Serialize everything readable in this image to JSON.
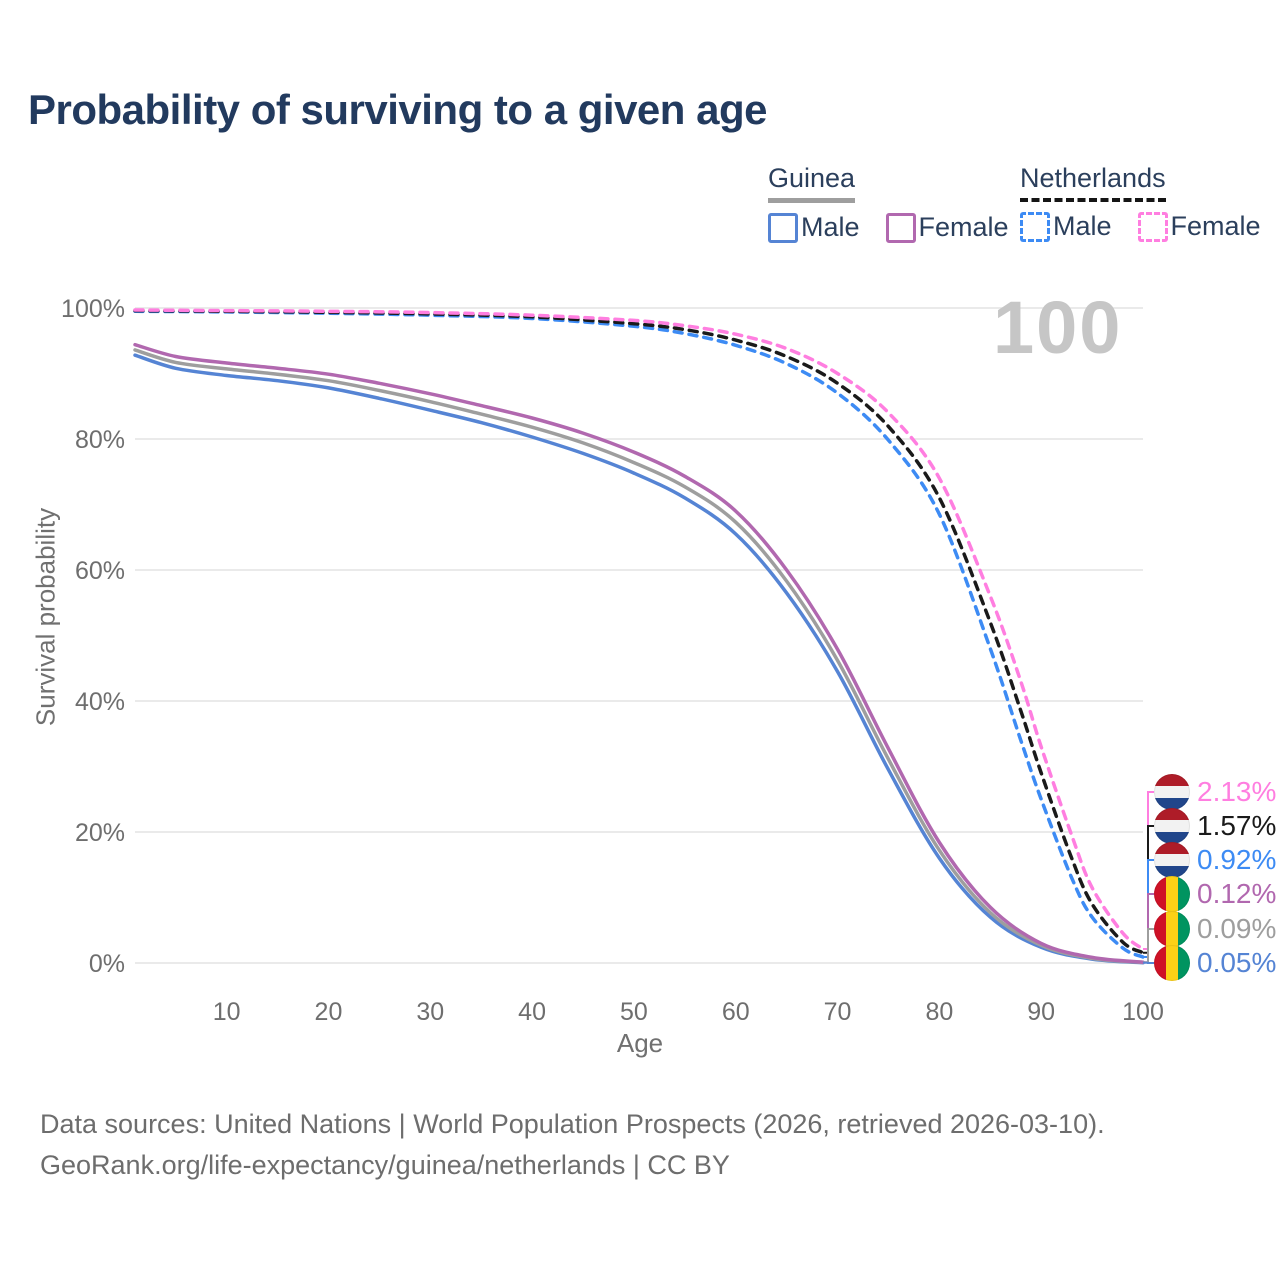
{
  "page": {
    "title": "Probability of surviving to a given age"
  },
  "legend": {
    "groups": [
      {
        "label": "Guinea",
        "line_style": "solid",
        "items": [
          {
            "label": "Male",
            "series": "gn_male"
          },
          {
            "label": "Female",
            "series": "gn_female"
          }
        ]
      },
      {
        "label": "Netherlands",
        "line_style": "dashed",
        "items": [
          {
            "label": "Male",
            "series": "nl_male"
          },
          {
            "label": "Female",
            "series": "nl_female"
          }
        ]
      }
    ]
  },
  "colors": {
    "gn_male": "#5584d4",
    "gn_both": "#9e9e9e",
    "gn_female": "#b168af",
    "nl_male": "#3d8bf4",
    "nl_both": "#1a1a1a",
    "nl_female": "#ff7ee0",
    "title_navy": "#223a5e",
    "tick_gray": "#6e6e6e",
    "grid_gray": "#e4e4e4",
    "annotation_gray": "#c6c6c6",
    "nl_flag_red": "#AE1C28",
    "nl_flag_white": "#f2f2f2",
    "nl_flag_blue": "#21468B",
    "gn_flag_red": "#CE1126",
    "gn_flag_yellow": "#FCD116",
    "gn_flag_green": "#009460"
  },
  "chart_data": {
    "type": "line",
    "title": "Probability of surviving to a given age",
    "xlabel": "Age",
    "ylabel": "Survival probability",
    "xlim": [
      1,
      100
    ],
    "ylim": [
      0,
      100
    ],
    "grid": true,
    "legend_position": "top-right",
    "corner_annotation": "100",
    "x_ticks": [
      10,
      20,
      30,
      40,
      50,
      60,
      70,
      80,
      90,
      100
    ],
    "y_ticks": [
      {
        "value": 0,
        "label": "0%"
      },
      {
        "value": 20,
        "label": "20%"
      },
      {
        "value": 40,
        "label": "40%"
      },
      {
        "value": 60,
        "label": "60%"
      },
      {
        "value": 80,
        "label": "80%"
      },
      {
        "value": 100,
        "label": "100%"
      }
    ],
    "series": [
      {
        "id": "gn_male",
        "name": "Guinea Male",
        "dash": false,
        "end_label": "0.05%",
        "points": [
          [
            1,
            92.8
          ],
          [
            5,
            90.8
          ],
          [
            10,
            89.7
          ],
          [
            15,
            88.9
          ],
          [
            20,
            87.8
          ],
          [
            25,
            86.2
          ],
          [
            30,
            84.4
          ],
          [
            35,
            82.5
          ],
          [
            40,
            80.3
          ],
          [
            45,
            77.8
          ],
          [
            50,
            74.8
          ],
          [
            55,
            71
          ],
          [
            60,
            65.5
          ],
          [
            65,
            56.5
          ],
          [
            70,
            44.5
          ],
          [
            75,
            29.5
          ],
          [
            80,
            16
          ],
          [
            85,
            7
          ],
          [
            90,
            2.4
          ],
          [
            95,
            0.6
          ],
          [
            100,
            0.05
          ]
        ]
      },
      {
        "id": "gn_both",
        "name": "Guinea (both sexes)",
        "dash": false,
        "end_label": "0.09%",
        "points": [
          [
            1,
            93.6
          ],
          [
            5,
            91.7
          ],
          [
            10,
            90.7
          ],
          [
            15,
            89.9
          ],
          [
            20,
            88.9
          ],
          [
            25,
            87.4
          ],
          [
            30,
            85.7
          ],
          [
            35,
            83.8
          ],
          [
            40,
            81.8
          ],
          [
            45,
            79.4
          ],
          [
            50,
            76.4
          ],
          [
            55,
            72.7
          ],
          [
            60,
            67.3
          ],
          [
            65,
            58.3
          ],
          [
            70,
            46.2
          ],
          [
            75,
            31.1
          ],
          [
            80,
            17.2
          ],
          [
            85,
            7.7
          ],
          [
            90,
            2.7
          ],
          [
            95,
            0.7
          ],
          [
            100,
            0.09
          ]
        ]
      },
      {
        "id": "gn_female",
        "name": "Guinea Female",
        "dash": false,
        "end_label": "0.12%",
        "points": [
          [
            1,
            94.4
          ],
          [
            5,
            92.6
          ],
          [
            10,
            91.6
          ],
          [
            15,
            90.8
          ],
          [
            20,
            89.9
          ],
          [
            25,
            88.5
          ],
          [
            30,
            86.9
          ],
          [
            35,
            85.1
          ],
          [
            40,
            83.2
          ],
          [
            45,
            80.9
          ],
          [
            50,
            78
          ],
          [
            55,
            74.3
          ],
          [
            60,
            69
          ],
          [
            65,
            60
          ],
          [
            70,
            47.9
          ],
          [
            75,
            32.7
          ],
          [
            80,
            18.4
          ],
          [
            85,
            8.5
          ],
          [
            90,
            3
          ],
          [
            95,
            0.85
          ],
          [
            100,
            0.12
          ]
        ]
      },
      {
        "id": "nl_male",
        "name": "Netherlands Male",
        "dash": true,
        "end_label": "0.92%",
        "points": [
          [
            1,
            99.5
          ],
          [
            10,
            99.4
          ],
          [
            20,
            99.2
          ],
          [
            30,
            98.9
          ],
          [
            40,
            98.4
          ],
          [
            50,
            97.2
          ],
          [
            55,
            96.1
          ],
          [
            60,
            94.3
          ],
          [
            65,
            91.5
          ],
          [
            70,
            87
          ],
          [
            75,
            79.8
          ],
          [
            80,
            68.5
          ],
          [
            85,
            48
          ],
          [
            88,
            34
          ],
          [
            90,
            25
          ],
          [
            93,
            13
          ],
          [
            95,
            7
          ],
          [
            98,
            2.3
          ],
          [
            100,
            0.92
          ]
        ]
      },
      {
        "id": "nl_both",
        "name": "Netherlands (both sexes)",
        "dash": true,
        "end_label": "1.57%",
        "points": [
          [
            1,
            99.6
          ],
          [
            10,
            99.5
          ],
          [
            20,
            99.35
          ],
          [
            30,
            99.1
          ],
          [
            40,
            98.65
          ],
          [
            50,
            97.6
          ],
          [
            55,
            96.7
          ],
          [
            60,
            95.1
          ],
          [
            65,
            92.6
          ],
          [
            70,
            88.5
          ],
          [
            75,
            81.9
          ],
          [
            80,
            71
          ],
          [
            85,
            52
          ],
          [
            88,
            38.5
          ],
          [
            90,
            29
          ],
          [
            93,
            16
          ],
          [
            95,
            9
          ],
          [
            98,
            3.2
          ],
          [
            100,
            1.57
          ]
        ]
      },
      {
        "id": "nl_female",
        "name": "Netherlands Female",
        "dash": true,
        "end_label": "2.13%",
        "points": [
          [
            1,
            99.7
          ],
          [
            10,
            99.6
          ],
          [
            20,
            99.5
          ],
          [
            30,
            99.3
          ],
          [
            40,
            98.9
          ],
          [
            50,
            98.1
          ],
          [
            55,
            97.3
          ],
          [
            60,
            96
          ],
          [
            65,
            93.8
          ],
          [
            70,
            90
          ],
          [
            75,
            84
          ],
          [
            80,
            74
          ],
          [
            85,
            56
          ],
          [
            88,
            43
          ],
          [
            90,
            33
          ],
          [
            93,
            19.5
          ],
          [
            95,
            11.5
          ],
          [
            98,
            4.6
          ],
          [
            100,
            2.13
          ]
        ]
      }
    ]
  },
  "end_labels": [
    {
      "value": "2.13%",
      "flag": "nl",
      "series": "nl_female"
    },
    {
      "value": "1.57%",
      "flag": "nl",
      "series": "nl_both"
    },
    {
      "value": "0.92%",
      "flag": "nl",
      "series": "nl_male"
    },
    {
      "value": "0.12%",
      "flag": "gn",
      "series": "gn_female"
    },
    {
      "value": "0.09%",
      "flag": "gn",
      "series": "gn_both"
    },
    {
      "value": "0.05%",
      "flag": "gn",
      "series": "gn_male"
    }
  ],
  "footer": {
    "line1": "Data sources: United Nations | World Population Prospects (2026, retrieved 2026-03-10).",
    "line2": "GeoRank.org/life-expectancy/guinea/netherlands | CC BY"
  }
}
